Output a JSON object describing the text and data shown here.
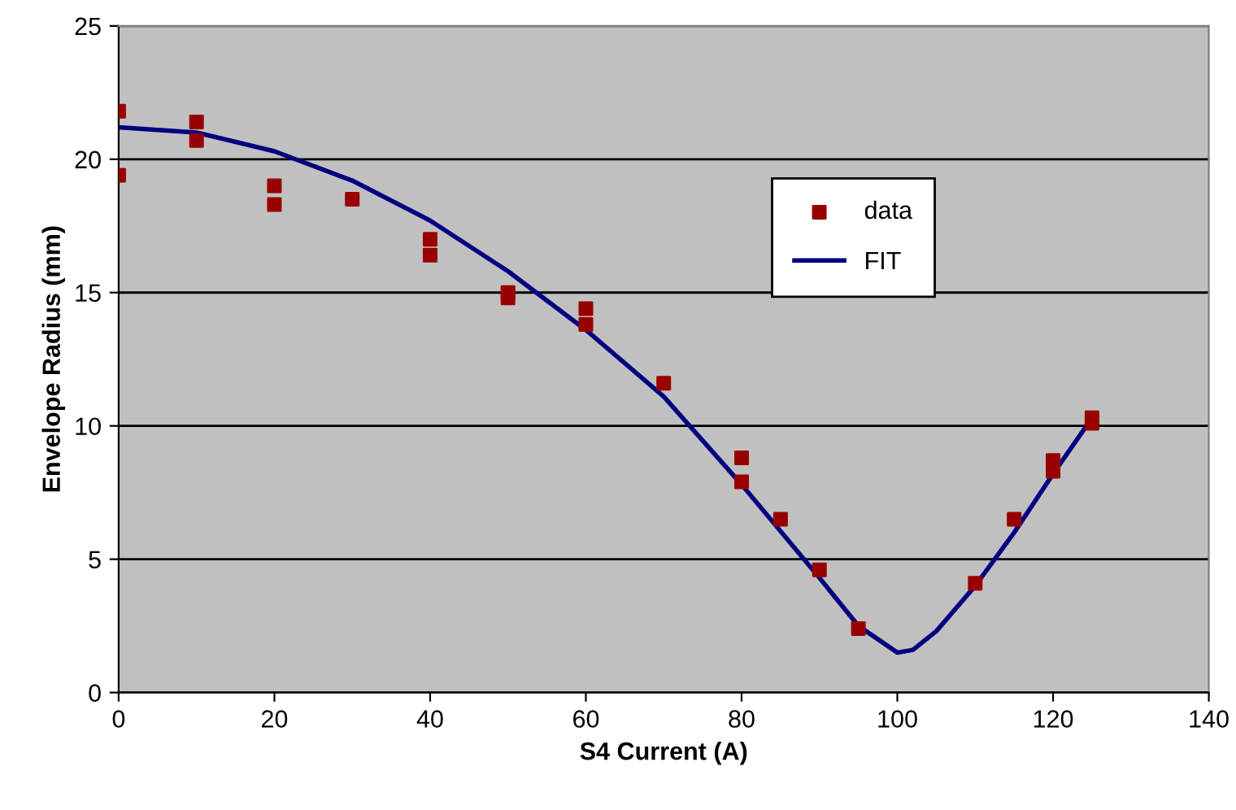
{
  "chart_data": {
    "type": "scatter",
    "xlabel": "S4 Current (A)",
    "ylabel": "Envelope Radius (mm)",
    "xlim": [
      0,
      140
    ],
    "xticks": [
      0,
      20,
      40,
      60,
      80,
      100,
      120,
      140
    ],
    "ylim": [
      0,
      25
    ],
    "yticks": [
      0,
      5,
      10,
      15,
      20,
      25
    ],
    "grid": "y",
    "legend": "top right",
    "series": [
      {
        "name": "data",
        "marker": "square",
        "color": "#990000",
        "x": [
          0,
          0,
          10,
          10,
          20,
          20,
          30,
          40,
          40,
          50,
          50,
          60,
          60,
          70,
          80,
          80,
          85,
          90,
          95,
          110,
          115,
          120,
          120,
          125,
          125
        ],
        "values": [
          21.8,
          19.4,
          21.4,
          20.7,
          19.0,
          18.3,
          18.5,
          17.0,
          16.4,
          15.0,
          14.8,
          14.4,
          13.8,
          11.6,
          8.8,
          7.9,
          6.5,
          4.6,
          2.4,
          4.1,
          6.5,
          8.7,
          8.3,
          10.3,
          10.1
        ]
      },
      {
        "name": "FIT",
        "type": "line",
        "marker": "none",
        "line_style": "solid",
        "color": "#000080",
        "x": [
          0,
          10,
          20,
          30,
          40,
          50,
          60,
          70,
          80,
          90,
          95,
          100,
          102,
          105,
          110,
          115,
          120,
          125
        ],
        "values": [
          21.2,
          21.0,
          20.3,
          19.2,
          17.7,
          15.8,
          13.6,
          11.1,
          7.8,
          4.3,
          2.5,
          1.5,
          1.6,
          2.3,
          4.0,
          6.0,
          8.2,
          10.3
        ]
      }
    ]
  }
}
